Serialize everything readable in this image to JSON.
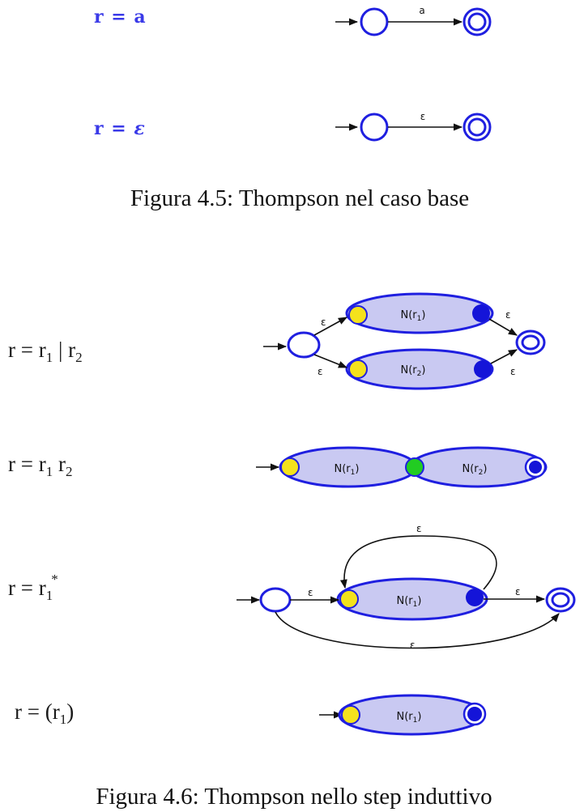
{
  "base_case": {
    "row_a": {
      "lhs": "r",
      "eq": "=",
      "rhs": "a",
      "edge_label": "a"
    },
    "row_eps": {
      "lhs": "r",
      "eq": "=",
      "rhs": "ε",
      "edge_label": "ε"
    },
    "caption": "Figura 4.5: Thompson nel caso base"
  },
  "inductive": {
    "union": {
      "lhs": "r = r",
      "sub1": "1",
      "mid": " | r",
      "sub2": "2",
      "top_nfa": "N(r",
      "top_sub": "1",
      "bot_nfa": "N(r",
      "bot_sub": "2",
      "eps": "ε"
    },
    "concat": {
      "lhs": "r = r",
      "sub1": "1",
      "mid": " r",
      "sub2": "2",
      "left_nfa": "N(r",
      "left_sub": "1",
      "right_nfa": "N(r",
      "right_sub": "2"
    },
    "star": {
      "lhs": "r = r",
      "sub1": "1",
      "sup": "*",
      "nfa": "N(r",
      "nfa_sub": "1",
      "eps": "ε"
    },
    "paren": {
      "lhs": "r = (r",
      "sub1": "1",
      "close": ")",
      "nfa": "N(r",
      "nfa_sub": "1"
    },
    "caption": "Figura 4.6: Thompson nello step induttivo"
  },
  "colors": {
    "state_border": "#1f1fe0",
    "oval_fill": "#c9c9f2",
    "start": "#f4e21c",
    "accept": "#1414d8",
    "join": "#22cc22"
  }
}
